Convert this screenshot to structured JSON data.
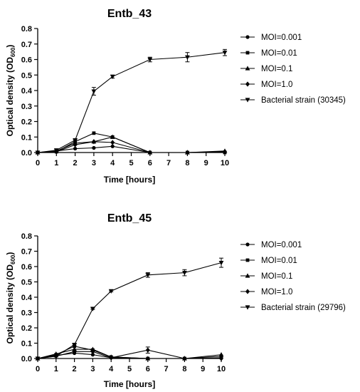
{
  "chart_data": [
    {
      "type": "line",
      "title": "Entb_43",
      "xlabel": "Time [hours]",
      "ylabel": "Optical density (OD600)",
      "ylabel_main": "Optical density (OD",
      "ylabel_sub": "600",
      "ylabel_close": ")",
      "xlim": [
        0,
        10
      ],
      "ylim": [
        0,
        0.8
      ],
      "xticks": [
        0,
        1,
        2,
        3,
        4,
        5,
        6,
        7,
        8,
        9,
        10
      ],
      "yticks": [
        0.0,
        0.1,
        0.2,
        0.3,
        0.4,
        0.5,
        0.6,
        0.7,
        0.8
      ],
      "x": [
        0,
        1,
        2,
        3,
        4,
        6,
        8,
        10
      ],
      "legend_position": "right",
      "error_bars": true,
      "series": [
        {
          "name": "MOI=0.001",
          "marker": "circle",
          "values": [
            0.0,
            0.01,
            0.025,
            0.03,
            0.04,
            0.0,
            0.0,
            0.005
          ]
        },
        {
          "name": "MOI=0.01",
          "marker": "square",
          "values": [
            0.0,
            0.005,
            0.07,
            0.125,
            0.1,
            0.0,
            0.0,
            0.0
          ]
        },
        {
          "name": "MOI=0.1",
          "marker": "triangle-up",
          "values": [
            0.0,
            0.01,
            0.06,
            0.07,
            0.1,
            0.0,
            0.0,
            0.01
          ]
        },
        {
          "name": "MOI=1.0",
          "marker": "diamond",
          "values": [
            0.0,
            0.005,
            0.05,
            0.07,
            0.065,
            0.0,
            0.0,
            0.005
          ]
        },
        {
          "name": "Bacterial strain (30345)",
          "marker": "triangle-down",
          "values": [
            0.0,
            0.015,
            0.08,
            0.395,
            0.49,
            0.6,
            0.615,
            0.645
          ],
          "errors": [
            0,
            0.005,
            0.005,
            0.025,
            0.01,
            0.015,
            0.03,
            0.02
          ]
        }
      ]
    },
    {
      "type": "line",
      "title": "Entb_45",
      "xlabel": "Time [hours]",
      "ylabel": "Optical density (OD600)",
      "ylabel_main": "Optical density (OD",
      "ylabel_sub": "600",
      "ylabel_close": ")",
      "xlim": [
        0,
        10
      ],
      "ylim": [
        0,
        0.8
      ],
      "xticks": [
        0,
        1,
        2,
        3,
        4,
        5,
        6,
        7,
        8,
        9,
        10
      ],
      "yticks": [
        0.0,
        0.1,
        0.2,
        0.3,
        0.4,
        0.5,
        0.6,
        0.7,
        0.8
      ],
      "x": [
        0,
        1,
        2,
        3,
        4,
        6,
        8,
        10
      ],
      "legend_position": "right",
      "error_bars": true,
      "series": [
        {
          "name": "MOI=0.001",
          "marker": "circle",
          "values": [
            0.0,
            0.02,
            0.035,
            0.025,
            0.005,
            0.0,
            0.0,
            0.005
          ]
        },
        {
          "name": "MOI=0.01",
          "marker": "square",
          "values": [
            0.0,
            0.025,
            0.08,
            0.055,
            0.01,
            0.0,
            0.0,
            0.015
          ]
        },
        {
          "name": "MOI=0.1",
          "marker": "triangle-up",
          "values": [
            0.0,
            0.03,
            0.06,
            0.06,
            0.01,
            0.0,
            0.0,
            0.025
          ]
        },
        {
          "name": "MOI=1.0",
          "marker": "diamond",
          "values": [
            0.0,
            0.015,
            0.045,
            0.045,
            0.005,
            0.055,
            0.0,
            0.0
          ],
          "errors": [
            0,
            0,
            0,
            0,
            0,
            0.02,
            0,
            0
          ]
        },
        {
          "name": "Bacterial strain (29796)",
          "marker": "triangle-down",
          "values": [
            0.0,
            0.015,
            0.09,
            0.325,
            0.44,
            0.545,
            0.56,
            0.625
          ],
          "errors": [
            0,
            0.005,
            0.005,
            0.005,
            0.005,
            0.015,
            0.02,
            0.03
          ]
        }
      ]
    }
  ]
}
